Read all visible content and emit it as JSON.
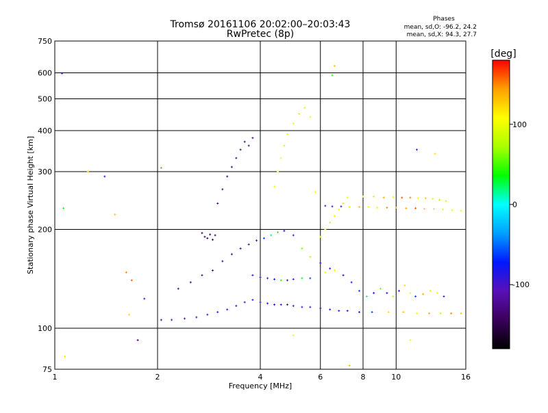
{
  "chart_data": {
    "type": "scatter",
    "title": "Tromsø 20161106 20:02:00–20:03:43",
    "subtitle": "RwPretec (8p)",
    "xlabel": "Frequency [MHz]",
    "ylabel": "Stationary phase Virtual Height [km]",
    "x_scale": "log",
    "y_scale": "log",
    "xlim": [
      1,
      16
    ],
    "ylim": [
      75,
      750
    ],
    "x_ticks": [
      {
        "value": 1,
        "label": "1"
      },
      {
        "value": 2,
        "label": "2"
      },
      {
        "value": 4,
        "label": "4"
      },
      {
        "value": 6,
        "label": "6"
      },
      {
        "value": 8,
        "label": "8"
      },
      {
        "value": 10,
        "label": "10"
      },
      {
        "value": 16,
        "label": "16"
      }
    ],
    "y_ticks": [
      {
        "value": 75,
        "label": "75"
      },
      {
        "value": 100,
        "label": "100"
      },
      {
        "value": 200,
        "label": "200"
      },
      {
        "value": 300,
        "label": "300"
      },
      {
        "value": 400,
        "label": "400"
      },
      {
        "value": 500,
        "label": "500"
      },
      {
        "value": 600,
        "label": "600"
      },
      {
        "value": 750,
        "label": "750"
      }
    ],
    "grid": true,
    "stats": {
      "heading": "Phases",
      "line_o": "mean, sd,O:  -96.2, 24.2",
      "line_x": "mean, sd,X:  94.3, 27.7"
    },
    "colorbar": {
      "label": "[deg]",
      "range": [
        -180,
        180
      ],
      "ticks": [
        {
          "value": 100,
          "label": "100"
        },
        {
          "value": 0,
          "label": "0"
        },
        {
          "value": -100,
          "label": "-100"
        }
      ],
      "colormap": [
        "#000000",
        "#3a005a",
        "#5a10b8",
        "#0018ff",
        "#00a0ff",
        "#00ffff",
        "#00ff00",
        "#aaff00",
        "#ffff00",
        "#ffa000",
        "#ff0000"
      ]
    },
    "series": [
      {
        "x": [
          2.05,
          2.2,
          2.4,
          2.6,
          2.8,
          3.0,
          3.2,
          3.4,
          3.6,
          3.8,
          4.0,
          4.2,
          4.4,
          4.6,
          4.8,
          5.0,
          5.3,
          5.6,
          6.0,
          6.4,
          6.8,
          7.2,
          7.8,
          8.5,
          9.5,
          10.5,
          11.5,
          12.5,
          13.5,
          14.5,
          15.5
        ],
        "y": [
          106,
          106,
          107,
          108,
          110,
          112,
          114,
          117,
          120,
          122,
          120,
          119,
          118,
          118,
          118,
          117,
          116,
          116,
          115,
          114,
          113,
          113,
          112,
          112,
          112,
          112,
          111,
          111,
          111,
          111,
          111
        ],
        "phase": [
          -110,
          -108,
          -105,
          -102,
          -100,
          -98,
          -100,
          -96,
          -94,
          -100,
          -92,
          -90,
          -88,
          -100,
          -92,
          -95,
          -98,
          -100,
          -102,
          -100,
          -96,
          -94,
          -90,
          -60,
          120,
          130,
          110,
          140,
          120,
          150,
          130
        ]
      },
      {
        "x": [
          2.3,
          2.5,
          2.7,
          2.9,
          3.1,
          3.3,
          3.5,
          3.7,
          3.9,
          4.1,
          4.3,
          4.5,
          4.7,
          5.0,
          5.3,
          5.6,
          6.0,
          6.4
        ],
        "y": [
          132,
          138,
          145,
          150,
          160,
          168,
          175,
          180,
          185,
          188,
          192,
          196,
          198,
          192,
          175,
          165,
          158,
          152
        ],
        "phase": [
          -130,
          -130,
          -128,
          -130,
          -126,
          -130,
          -120,
          -110,
          -90,
          -60,
          20,
          40,
          -90,
          -95,
          60,
          80,
          -100,
          -95
        ]
      },
      {
        "x": [
          3.0,
          3.1,
          3.2,
          3.3,
          3.4,
          3.5,
          3.6,
          3.7,
          3.8
        ],
        "y": [
          240,
          265,
          290,
          310,
          330,
          350,
          370,
          360,
          380
        ],
        "phase": [
          -130,
          -128,
          -135,
          -130,
          -125,
          -132,
          -128,
          -130,
          -125
        ]
      },
      {
        "x": [
          2.7,
          2.75,
          2.8,
          2.85,
          2.9,
          2.95
        ],
        "y": [
          195,
          190,
          188,
          193,
          186,
          192
        ],
        "phase": [
          -140,
          -140,
          -138,
          -142,
          -140,
          -138
        ]
      },
      {
        "x": [
          3.8,
          4.0,
          4.2,
          4.4,
          4.6,
          4.8,
          5.0,
          5.3,
          5.6
        ],
        "y": [
          145,
          143,
          142,
          141,
          140,
          140,
          141,
          142,
          142
        ],
        "phase": [
          -95,
          -90,
          -92,
          -80,
          40,
          -90,
          -100,
          30,
          -60
        ]
      },
      {
        "x": [
          4.4,
          4.5,
          4.6,
          4.7,
          4.8,
          5.0,
          5.2,
          5.4,
          5.6,
          5.8
        ],
        "y": [
          270,
          300,
          330,
          360,
          390,
          420,
          450,
          470,
          440,
          260
        ],
        "phase": [
          100,
          110,
          105,
          120,
          110,
          100,
          115,
          90,
          100,
          110
        ]
      },
      {
        "x": [
          6.0,
          6.2,
          6.4,
          6.6,
          6.8,
          7.0,
          7.2
        ],
        "y": [
          190,
          200,
          210,
          220,
          230,
          240,
          250
        ],
        "phase": [
          100,
          110,
          90,
          100,
          115,
          120,
          95
        ]
      },
      {
        "x": [
          6.2,
          6.5,
          6.9,
          7.3,
          7.8,
          8.3,
          8.8,
          9.4,
          10.0,
          10.7,
          11.4,
          12.1,
          12.9,
          13.7,
          14.6,
          15.5
        ],
        "y": [
          236,
          235,
          235,
          234,
          234,
          234,
          233,
          233,
          233,
          232,
          232,
          231,
          231,
          230,
          229,
          228
        ],
        "phase": [
          -110,
          -105,
          -100,
          120,
          130,
          110,
          100,
          150,
          130,
          140,
          160,
          120,
          90,
          110,
          100,
          95
        ]
      },
      {
        "x": [
          8.0,
          8.6,
          9.2,
          9.8,
          10.4,
          11.0,
          11.6,
          12.2,
          12.8,
          13.4,
          14.0
        ],
        "y": [
          252,
          252,
          250,
          251,
          250,
          250,
          249,
          249,
          248,
          246,
          244
        ],
        "phase": [
          90,
          120,
          140,
          100,
          160,
          150,
          110,
          130,
          100,
          80,
          90
        ]
      },
      {
        "x": [
          6.2,
          6.6,
          7.0,
          7.4,
          7.8,
          8.2,
          8.6,
          9.0,
          9.4,
          9.8,
          10.2,
          10.6,
          11.0,
          11.4,
          12.0,
          12.6,
          13.2,
          13.8
        ],
        "y": [
          148,
          150,
          145,
          138,
          130,
          125,
          128,
          132,
          128,
          125,
          130,
          135,
          128,
          125,
          127,
          130,
          128,
          125
        ],
        "phase": [
          100,
          110,
          -100,
          -90,
          -60,
          20,
          -90,
          60,
          -80,
          80,
          -100,
          120,
          100,
          -60,
          140,
          90,
          110,
          -90
        ]
      },
      {
        "x": [
          1.05,
          1.06,
          1.07,
          1.25,
          1.4,
          1.5,
          1.62,
          1.65,
          1.68,
          1.75,
          1.83,
          2.05,
          5.0,
          6.5,
          6.6,
          7.3,
          11.0,
          11.5,
          13.0
        ],
        "y": [
          598,
          232,
          82,
          300,
          290,
          222,
          148,
          110,
          140,
          92,
          123,
          308,
          95,
          590,
          630,
          77,
          92,
          350,
          340
        ],
        "phase": [
          -100,
          30,
          120,
          130,
          -90,
          130,
          150,
          120,
          160,
          -140,
          -100,
          150,
          110,
          40,
          130,
          130,
          110,
          -100,
          120
        ]
      }
    ]
  }
}
